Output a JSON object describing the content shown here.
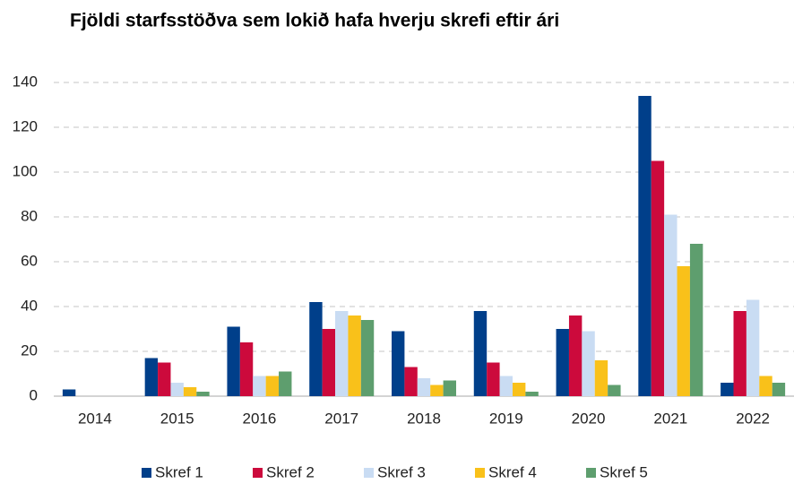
{
  "chart_data": {
    "type": "bar",
    "title": "Fjöldi starfsstöðva sem lokið hafa hverju skrefi eftir ári",
    "categories": [
      "2014",
      "2015",
      "2016",
      "2017",
      "2018",
      "2019",
      "2020",
      "2021",
      "2022"
    ],
    "series": [
      {
        "name": "Skref 1",
        "color": "#003f8a",
        "values": [
          3,
          17,
          31,
          42,
          29,
          38,
          30,
          134,
          6
        ]
      },
      {
        "name": "Skref 2",
        "color": "#cc0a3c",
        "values": [
          0,
          15,
          24,
          30,
          13,
          15,
          36,
          105,
          38
        ]
      },
      {
        "name": "Skref 3",
        "color": "#c9dcf3",
        "values": [
          0,
          6,
          9,
          38,
          8,
          9,
          29,
          81,
          43
        ]
      },
      {
        "name": "Skref 4",
        "color": "#f9c11a",
        "values": [
          0,
          4,
          9,
          36,
          5,
          6,
          16,
          58,
          9
        ]
      },
      {
        "name": "Skref 5",
        "color": "#5e9e6e",
        "values": [
          0,
          2,
          11,
          34,
          7,
          2,
          5,
          68,
          6
        ]
      }
    ],
    "ylim": [
      0,
      140
    ],
    "yticks": [
      0,
      20,
      40,
      60,
      80,
      100,
      120,
      140
    ],
    "grid": true,
    "legend": "bottom"
  }
}
